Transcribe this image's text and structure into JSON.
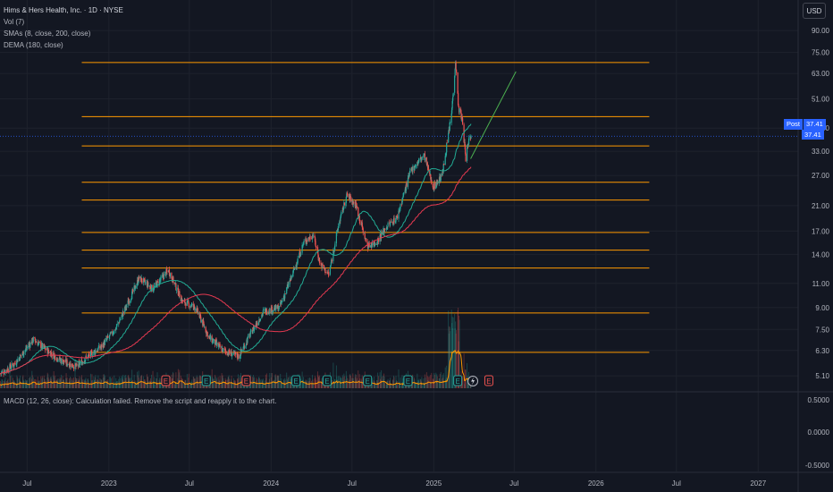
{
  "legend": {
    "title": "Hims & Hers Health, Inc. · 1D · NYSE",
    "vol": "Vol (7)",
    "smas": "SMAs (8, close, 200, close)",
    "dema": "DEMA (180, close)"
  },
  "currency": "USD",
  "price_tags": {
    "post_label": "Post",
    "post_value": "37.41",
    "last_value": "37.41"
  },
  "macd": {
    "label": "MACD (12, 26, close): Calculation failed. Remove the script and reapply it to the chart."
  },
  "colors": {
    "background": "#131722",
    "grid": "#1e222d",
    "up": "#26a69a",
    "down": "#ef5350",
    "sma_short": "#22ab94",
    "trend": "#4caf50",
    "dema": "#e53950",
    "horizontal_levels": "#ff9800",
    "volume_line": "#ff9800",
    "price_line": "#2962ff"
  },
  "chart_data": {
    "type": "candlestick",
    "ticker": "HIMS",
    "y_scale": "log",
    "ylim": [
      4.5,
      100
    ],
    "y_ticks": [
      "90.00",
      "75.00",
      "63.00",
      "51.00",
      "40.00",
      "33.00",
      "27.00",
      "21.00",
      "17.00",
      "14.00",
      "11.00",
      "9.00",
      "7.50",
      "6.30",
      "5.10"
    ],
    "x_ticks": [
      "Jul",
      "2023",
      "Jul",
      "2024",
      "Jul",
      "2025",
      "Jul",
      "2026",
      "Jul",
      "2027"
    ],
    "x_tick_dates": [
      "2022-07-01",
      "2023-01-01",
      "2023-07-01",
      "2024-01-01",
      "2024-07-01",
      "2025-01-01",
      "2025-07-01",
      "2026-01-01",
      "2026-07-01",
      "2027-01-01"
    ],
    "x_range": [
      "2022-05-01",
      "2027-04-01"
    ],
    "price_path": [
      [
        "2022-05-02",
        5.2
      ],
      [
        "2022-06-01",
        5.6
      ],
      [
        "2022-07-15",
        6.9
      ],
      [
        "2022-08-15",
        6.3
      ],
      [
        "2022-09-15",
        5.8
      ],
      [
        "2022-10-20",
        5.5
      ],
      [
        "2022-11-15",
        6.0
      ],
      [
        "2022-12-15",
        6.5
      ],
      [
        "2023-01-15",
        7.5
      ],
      [
        "2023-02-15",
        9.5
      ],
      [
        "2023-03-10",
        11.5
      ],
      [
        "2023-04-10",
        10.5
      ],
      [
        "2023-05-15",
        12.3
      ],
      [
        "2023-06-15",
        9.5
      ],
      [
        "2023-07-15",
        9.0
      ],
      [
        "2023-08-15",
        7.0
      ],
      [
        "2023-09-15",
        6.3
      ],
      [
        "2023-10-20",
        6.0
      ],
      [
        "2023-11-15",
        7.2
      ],
      [
        "2023-12-15",
        8.7
      ],
      [
        "2024-01-20",
        9.0
      ],
      [
        "2024-02-15",
        11.5
      ],
      [
        "2024-03-15",
        15.5
      ],
      [
        "2024-04-05",
        16.5
      ],
      [
        "2024-04-20",
        13.0
      ],
      [
        "2024-05-10",
        11.8
      ],
      [
        "2024-06-01",
        18.0
      ],
      [
        "2024-06-20",
        23.0
      ],
      [
        "2024-07-10",
        21.0
      ],
      [
        "2024-08-05",
        15.0
      ],
      [
        "2024-08-25",
        15.5
      ],
      [
        "2024-09-15",
        17.5
      ],
      [
        "2024-10-10",
        19.0
      ],
      [
        "2024-11-10",
        28.0
      ],
      [
        "2024-12-10",
        32.0
      ],
      [
        "2024-12-31",
        24.5
      ],
      [
        "2025-01-20",
        27.0
      ],
      [
        "2025-02-10",
        45.0
      ],
      [
        "2025-02-19",
        70.0
      ],
      [
        "2025-02-26",
        47.0
      ],
      [
        "2025-03-06",
        43.0
      ],
      [
        "2025-03-14",
        31.0
      ],
      [
        "2025-03-20",
        36.0
      ],
      [
        "2025-03-26",
        37.41
      ]
    ],
    "horizontal_levels": [
      69.0,
      44.0,
      34.5,
      25.5,
      22.0,
      16.8,
      14.5,
      12.5,
      8.6,
      6.2
    ],
    "levels_x_range": [
      "2022-11-01",
      "2026-05-01"
    ],
    "trendline": {
      "from": [
        "2025-03-25",
        31.0
      ],
      "to": [
        "2025-07-05",
        64.0
      ]
    },
    "last_price": 37.41,
    "earnings_markers": [
      {
        "date": "2023-05-09",
        "color": "red",
        "label": "E"
      },
      {
        "date": "2023-08-08",
        "color": "green",
        "label": "E"
      },
      {
        "date": "2023-11-06",
        "color": "red",
        "label": "E"
      },
      {
        "date": "2024-02-26",
        "color": "green",
        "label": "E"
      },
      {
        "date": "2024-05-06",
        "color": "green",
        "label": "E"
      },
      {
        "date": "2024-08-05",
        "color": "green",
        "label": "E"
      },
      {
        "date": "2024-11-04",
        "color": "green",
        "label": "E"
      },
      {
        "date": "2025-02-24",
        "color": "green",
        "label": "E"
      },
      {
        "date": "2025-05-05",
        "color": "red",
        "label": "E"
      }
    ],
    "macd_axis": {
      "ticks": [
        "0.5000",
        "0.0000",
        "-0.5000"
      ]
    }
  }
}
